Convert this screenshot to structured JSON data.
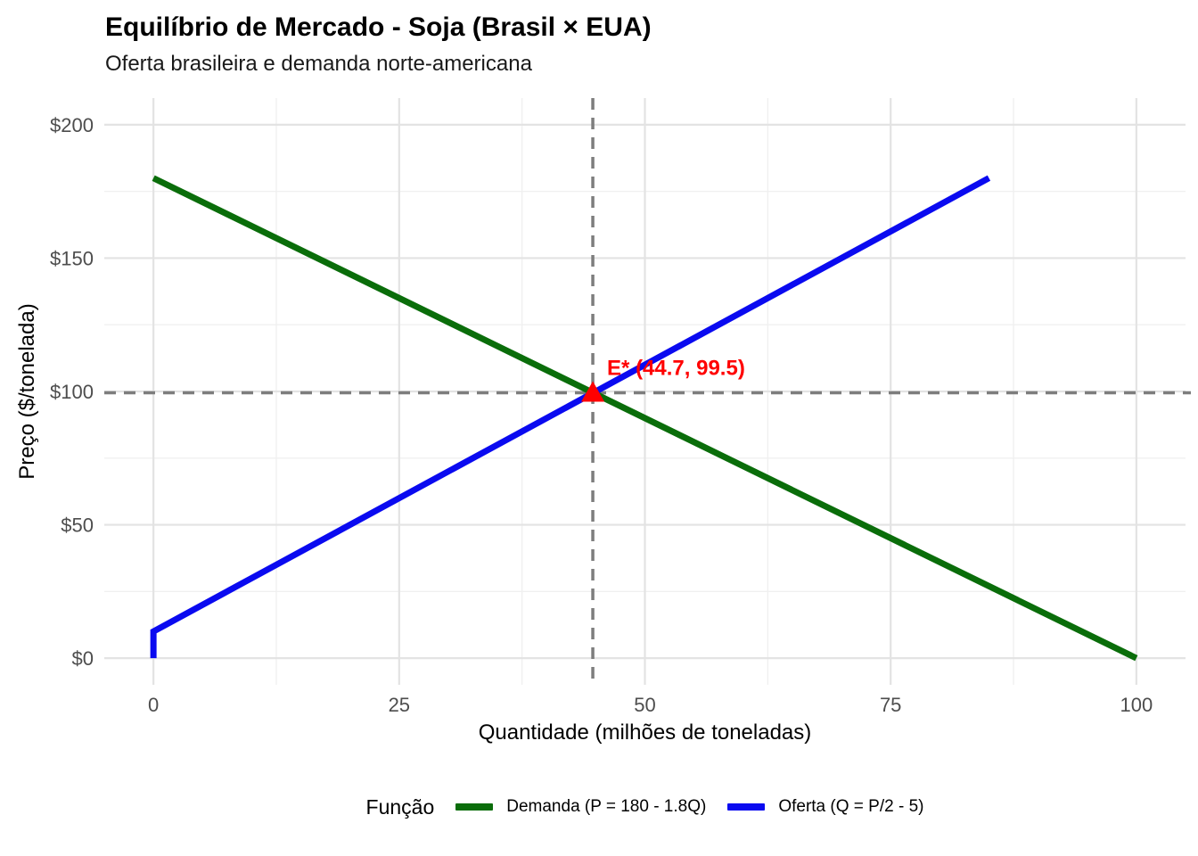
{
  "chart_data": {
    "type": "line",
    "title": "Equilíbrio de Mercado - Soja (Brasil × EUA)",
    "subtitle": "Oferta brasileira e demanda norte-americana",
    "xlabel": "Quantidade (milhões de toneladas)",
    "ylabel": "Preço ($/tonelada)",
    "xlim": [
      0,
      100
    ],
    "ylim": [
      0,
      200
    ],
    "x_ticks": [
      0,
      25,
      50,
      75,
      100
    ],
    "x_tick_labels": [
      "0",
      "25",
      "50",
      "75",
      "100"
    ],
    "x_minor_ticks": [
      12.5,
      37.5,
      62.5,
      87.5
    ],
    "y_ticks": [
      0,
      50,
      100,
      150,
      200
    ],
    "y_tick_labels": [
      "$0",
      "$50",
      "$100",
      "$150",
      "$200"
    ],
    "y_minor_ticks": [
      25,
      75,
      125,
      175
    ],
    "grid": true,
    "legend_position": "bottom",
    "legend_title": "Função",
    "series": [
      {
        "id": "demand",
        "name": "Demanda (P = 180 - 1.8Q)",
        "color": "#0a6d0a",
        "points": [
          [
            0,
            180
          ],
          [
            100,
            0
          ]
        ]
      },
      {
        "id": "supply",
        "name": "Oferta (Q = P/2 - 5)",
        "color": "#0a0af0",
        "points": [
          [
            0,
            0
          ],
          [
            0,
            10
          ],
          [
            85,
            180
          ]
        ]
      }
    ],
    "equilibrium": {
      "label": "E* (44.7, 99.5)",
      "x": 44.7,
      "y": 99.5,
      "marker": "triangle-up",
      "color": "#ff0000",
      "crosshair_color": "#7d7d7d"
    },
    "colors": {
      "grid_major": "#e3e3e3",
      "grid_minor": "#f0f0f0",
      "tick_text": "#4d4d4d",
      "background": "#ffffff"
    }
  }
}
